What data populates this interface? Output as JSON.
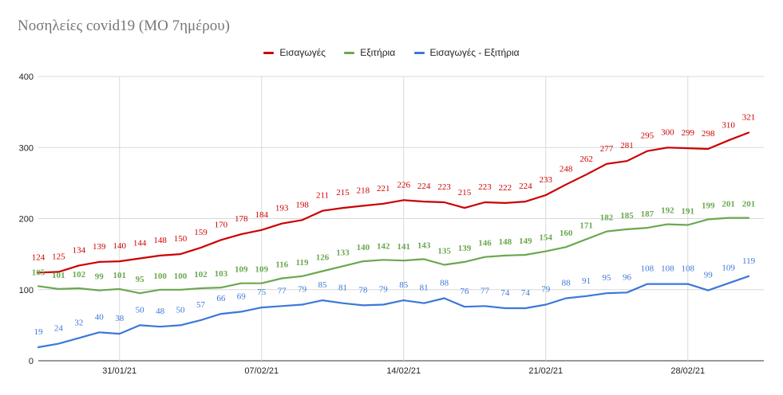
{
  "chart_data": {
    "type": "line",
    "title": "Νοσηλείες covid19 (ΜΟ 7ημέρου)",
    "xlabel": "",
    "ylabel": "",
    "ylim": [
      0,
      400
    ],
    "yticks": [
      0,
      100,
      200,
      300,
      400
    ],
    "x_tick_labels": [
      "31/01/21",
      "07/02/21",
      "14/02/21",
      "21/02/21",
      "28/02/21"
    ],
    "x_tick_index": [
      4,
      11,
      18,
      25,
      32
    ],
    "num_points": 36,
    "legend_position": "top",
    "grid": true,
    "series": [
      {
        "name": "Εισαγωγές",
        "color": "#cc0000",
        "values": [
          124,
          125,
          134,
          139,
          140,
          144,
          148,
          150,
          159,
          170,
          178,
          184,
          193,
          198,
          211,
          215,
          218,
          221,
          226,
          224,
          223,
          215,
          223,
          222,
          224,
          233,
          248,
          262,
          277,
          281,
          295,
          300,
          299,
          298,
          310,
          321
        ]
      },
      {
        "name": "Εξιτήρια",
        "color": "#6aa84f",
        "values": [
          105,
          101,
          102,
          99,
          101,
          95,
          100,
          100,
          102,
          103,
          109,
          109,
          116,
          119,
          126,
          133,
          140,
          142,
          141,
          143,
          135,
          139,
          146,
          148,
          149,
          154,
          160,
          171,
          182,
          185,
          187,
          192,
          191,
          199,
          201,
          201
        ]
      },
      {
        "name": "Εισαγωγές - Εξιτήρια",
        "color": "#3c78d8",
        "values": [
          19,
          24,
          32,
          40,
          38,
          50,
          48,
          50,
          57,
          66,
          69,
          75,
          77,
          79,
          85,
          81,
          78,
          79,
          85,
          81,
          88,
          76,
          77,
          74,
          74,
          79,
          88,
          91,
          95,
          96,
          108,
          108,
          108,
          99,
          109,
          119
        ]
      }
    ]
  }
}
